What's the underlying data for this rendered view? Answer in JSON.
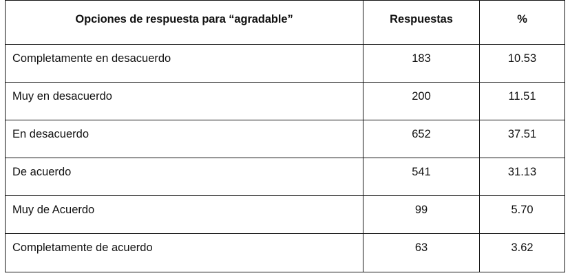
{
  "table": {
    "headers": {
      "option": "Opciones de respuesta para “agradable”",
      "responses": "Respuestas",
      "percent": "%"
    },
    "rows": [
      {
        "option": "Completamente en desacuerdo",
        "responses": "183",
        "percent": "10.53"
      },
      {
        "option": "Muy en desacuerdo",
        "responses": "200",
        "percent": "11.51"
      },
      {
        "option": "En desacuerdo",
        "responses": "652",
        "percent": "37.51"
      },
      {
        "option": "De acuerdo",
        "responses": "541",
        "percent": "31.13"
      },
      {
        "option": "Muy de Acuerdo",
        "responses": "99",
        "percent": "5.70"
      },
      {
        "option": "Completamente de acuerdo",
        "responses": "63",
        "percent": "3.62"
      }
    ]
  }
}
